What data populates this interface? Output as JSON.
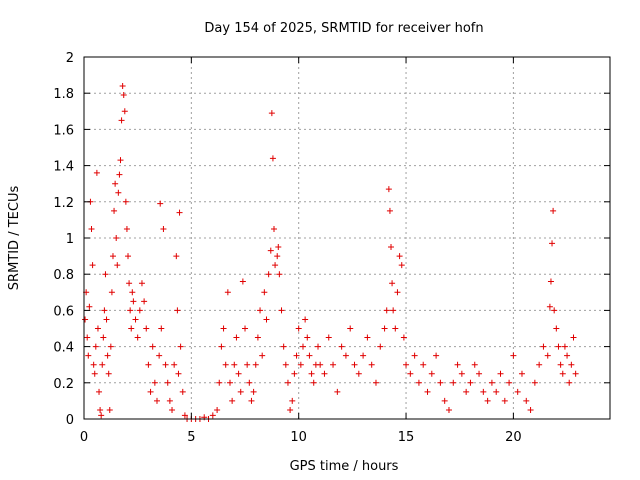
{
  "chart_data": {
    "type": "scatter",
    "title": "Day 154 of 2025, SRMTID for receiver hofn",
    "xlabel": "GPS time / hours",
    "ylabel": "SRMTID / TECUs",
    "xlim": [
      0,
      24.5
    ],
    "ylim": [
      0,
      2
    ],
    "xticks": [
      0,
      5,
      10,
      15,
      20
    ],
    "xtick_labels": [
      "0",
      "5",
      "10",
      "15",
      "20"
    ],
    "yticks": [
      0,
      0.2,
      0.4,
      0.6,
      0.8,
      1,
      1.2,
      1.4,
      1.6,
      1.8,
      2
    ],
    "ytick_labels": [
      "0",
      "0.2",
      "0.4",
      "0.6",
      "0.8",
      "1",
      "1.2",
      "1.4",
      "1.6",
      "1.8",
      "2"
    ],
    "grid": true,
    "marker": "+",
    "color": "#e00000",
    "series": [
      {
        "name": "SRMTID",
        "points": [
          [
            0.05,
            0.55
          ],
          [
            0.1,
            0.7
          ],
          [
            0.15,
            0.45
          ],
          [
            0.2,
            0.35
          ],
          [
            0.25,
            0.62
          ],
          [
            0.3,
            1.2
          ],
          [
            0.35,
            1.05
          ],
          [
            0.4,
            0.85
          ],
          [
            0.45,
            0.3
          ],
          [
            0.5,
            0.25
          ],
          [
            0.55,
            0.4
          ],
          [
            0.6,
            1.36
          ],
          [
            0.65,
            0.5
          ],
          [
            0.7,
            0.15
          ],
          [
            0.75,
            0.05
          ],
          [
            0.8,
            0.02
          ],
          [
            0.85,
            0.3
          ],
          [
            0.9,
            0.45
          ],
          [
            0.95,
            0.6
          ],
          [
            1.0,
            0.8
          ],
          [
            1.05,
            0.55
          ],
          [
            1.1,
            0.35
          ],
          [
            1.15,
            0.25
          ],
          [
            1.2,
            0.05
          ],
          [
            1.25,
            0.4
          ],
          [
            1.3,
            0.7
          ],
          [
            1.35,
            0.9
          ],
          [
            1.4,
            1.15
          ],
          [
            1.45,
            1.3
          ],
          [
            1.5,
            1.0
          ],
          [
            1.55,
            0.85
          ],
          [
            1.6,
            1.25
          ],
          [
            1.65,
            1.35
          ],
          [
            1.7,
            1.43
          ],
          [
            1.75,
            1.65
          ],
          [
            1.8,
            1.84
          ],
          [
            1.85,
            1.79
          ],
          [
            1.9,
            1.7
          ],
          [
            1.95,
            1.2
          ],
          [
            2.0,
            1.05
          ],
          [
            2.05,
            0.9
          ],
          [
            2.1,
            0.75
          ],
          [
            2.15,
            0.6
          ],
          [
            2.2,
            0.5
          ],
          [
            2.25,
            0.7
          ],
          [
            2.3,
            0.65
          ],
          [
            2.4,
            0.55
          ],
          [
            2.5,
            0.45
          ],
          [
            2.6,
            0.6
          ],
          [
            2.7,
            0.75
          ],
          [
            2.8,
            0.65
          ],
          [
            2.9,
            0.5
          ],
          [
            3.0,
            0.3
          ],
          [
            3.1,
            0.15
          ],
          [
            3.2,
            0.4
          ],
          [
            3.3,
            0.2
          ],
          [
            3.4,
            0.1
          ],
          [
            3.5,
            0.35
          ],
          [
            3.55,
            1.19
          ],
          [
            3.6,
            0.5
          ],
          [
            3.7,
            1.05
          ],
          [
            3.8,
            0.3
          ],
          [
            3.9,
            0.2
          ],
          [
            4.0,
            0.1
          ],
          [
            4.1,
            0.05
          ],
          [
            4.2,
            0.3
          ],
          [
            4.3,
            0.9
          ],
          [
            4.35,
            0.6
          ],
          [
            4.4,
            0.25
          ],
          [
            4.45,
            1.14
          ],
          [
            4.5,
            0.4
          ],
          [
            4.6,
            0.15
          ],
          [
            4.7,
            0.02
          ],
          [
            4.8,
            0.0
          ],
          [
            5.0,
            0.0
          ],
          [
            5.2,
            0.0
          ],
          [
            5.4,
            0.0
          ],
          [
            5.6,
            0.01
          ],
          [
            5.8,
            0.0
          ],
          [
            6.0,
            0.02
          ],
          [
            6.2,
            0.05
          ],
          [
            6.3,
            0.2
          ],
          [
            6.4,
            0.4
          ],
          [
            6.5,
            0.5
          ],
          [
            6.6,
            0.3
          ],
          [
            6.7,
            0.7
          ],
          [
            6.8,
            0.2
          ],
          [
            6.9,
            0.1
          ],
          [
            7.0,
            0.3
          ],
          [
            7.1,
            0.45
          ],
          [
            7.2,
            0.25
          ],
          [
            7.3,
            0.15
          ],
          [
            7.4,
            0.76
          ],
          [
            7.5,
            0.5
          ],
          [
            7.6,
            0.3
          ],
          [
            7.7,
            0.2
          ],
          [
            7.8,
            0.1
          ],
          [
            7.9,
            0.15
          ],
          [
            8.0,
            0.3
          ],
          [
            8.1,
            0.45
          ],
          [
            8.2,
            0.6
          ],
          [
            8.3,
            0.35
          ],
          [
            8.4,
            0.7
          ],
          [
            8.5,
            0.55
          ],
          [
            8.6,
            0.8
          ],
          [
            8.7,
            0.93
          ],
          [
            8.75,
            1.69
          ],
          [
            8.8,
            1.44
          ],
          [
            8.85,
            1.05
          ],
          [
            8.9,
            0.85
          ],
          [
            9.0,
            0.9
          ],
          [
            9.05,
            0.95
          ],
          [
            9.1,
            0.8
          ],
          [
            9.2,
            0.6
          ],
          [
            9.3,
            0.4
          ],
          [
            9.4,
            0.3
          ],
          [
            9.5,
            0.2
          ],
          [
            9.6,
            0.05
          ],
          [
            9.7,
            0.1
          ],
          [
            9.8,
            0.25
          ],
          [
            9.9,
            0.35
          ],
          [
            10.0,
            0.5
          ],
          [
            10.1,
            0.3
          ],
          [
            10.2,
            0.4
          ],
          [
            10.3,
            0.55
          ],
          [
            10.4,
            0.45
          ],
          [
            10.5,
            0.35
          ],
          [
            10.6,
            0.25
          ],
          [
            10.7,
            0.2
          ],
          [
            10.8,
            0.3
          ],
          [
            10.9,
            0.4
          ],
          [
            11.0,
            0.3
          ],
          [
            11.2,
            0.25
          ],
          [
            11.4,
            0.45
          ],
          [
            11.6,
            0.3
          ],
          [
            11.8,
            0.15
          ],
          [
            12.0,
            0.4
          ],
          [
            12.2,
            0.35
          ],
          [
            12.4,
            0.5
          ],
          [
            12.6,
            0.3
          ],
          [
            12.8,
            0.25
          ],
          [
            13.0,
            0.35
          ],
          [
            13.2,
            0.45
          ],
          [
            13.4,
            0.3
          ],
          [
            13.6,
            0.2
          ],
          [
            13.8,
            0.4
          ],
          [
            14.0,
            0.5
          ],
          [
            14.1,
            0.6
          ],
          [
            14.2,
            1.27
          ],
          [
            14.25,
            1.15
          ],
          [
            14.3,
            0.95
          ],
          [
            14.35,
            0.75
          ],
          [
            14.4,
            0.6
          ],
          [
            14.5,
            0.5
          ],
          [
            14.6,
            0.7
          ],
          [
            14.7,
            0.9
          ],
          [
            14.8,
            0.85
          ],
          [
            14.9,
            0.45
          ],
          [
            15.0,
            0.3
          ],
          [
            15.2,
            0.25
          ],
          [
            15.4,
            0.35
          ],
          [
            15.6,
            0.2
          ],
          [
            15.8,
            0.3
          ],
          [
            16.0,
            0.15
          ],
          [
            16.2,
            0.25
          ],
          [
            16.4,
            0.35
          ],
          [
            16.6,
            0.2
          ],
          [
            16.8,
            0.1
          ],
          [
            17.0,
            0.05
          ],
          [
            17.2,
            0.2
          ],
          [
            17.4,
            0.3
          ],
          [
            17.6,
            0.25
          ],
          [
            17.8,
            0.15
          ],
          [
            18.0,
            0.2
          ],
          [
            18.2,
            0.3
          ],
          [
            18.4,
            0.25
          ],
          [
            18.6,
            0.15
          ],
          [
            18.8,
            0.1
          ],
          [
            19.0,
            0.2
          ],
          [
            19.2,
            0.15
          ],
          [
            19.4,
            0.25
          ],
          [
            19.6,
            0.1
          ],
          [
            19.8,
            0.2
          ],
          [
            20.0,
            0.35
          ],
          [
            20.2,
            0.15
          ],
          [
            20.4,
            0.25
          ],
          [
            20.6,
            0.1
          ],
          [
            20.8,
            0.05
          ],
          [
            21.0,
            0.2
          ],
          [
            21.2,
            0.3
          ],
          [
            21.4,
            0.4
          ],
          [
            21.6,
            0.35
          ],
          [
            21.7,
            0.62
          ],
          [
            21.75,
            0.76
          ],
          [
            21.8,
            0.97
          ],
          [
            21.85,
            1.15
          ],
          [
            21.9,
            0.6
          ],
          [
            22.0,
            0.5
          ],
          [
            22.1,
            0.4
          ],
          [
            22.2,
            0.3
          ],
          [
            22.3,
            0.25
          ],
          [
            22.4,
            0.4
          ],
          [
            22.5,
            0.35
          ],
          [
            22.6,
            0.2
          ],
          [
            22.7,
            0.3
          ],
          [
            22.8,
            0.45
          ],
          [
            22.9,
            0.25
          ]
        ]
      }
    ]
  }
}
